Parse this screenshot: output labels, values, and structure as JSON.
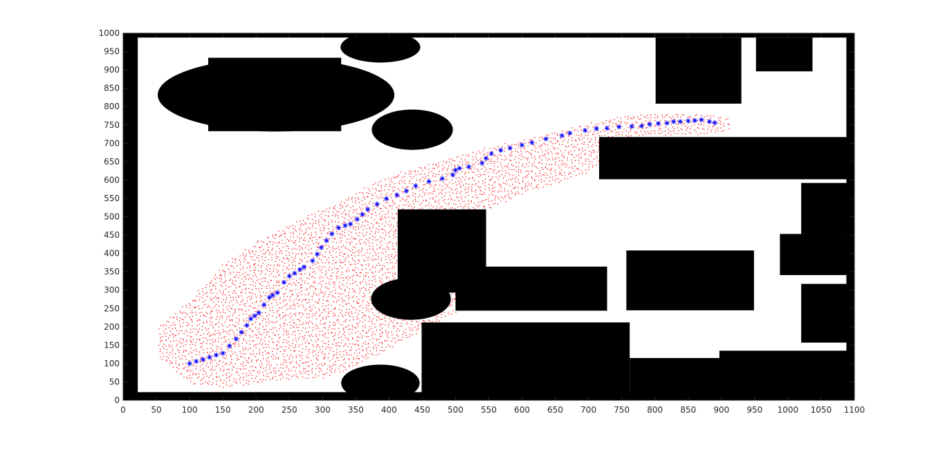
{
  "chart_data": {
    "type": "scatter",
    "title": "",
    "xlabel": "",
    "ylabel": "",
    "xlim": [
      0,
      1100
    ],
    "ylim": [
      0,
      1000
    ],
    "xticks": [
      0,
      50,
      100,
      150,
      200,
      250,
      300,
      350,
      400,
      450,
      500,
      550,
      600,
      650,
      700,
      750,
      800,
      850,
      900,
      950,
      1000,
      1050,
      1100
    ],
    "yticks": [
      0,
      50,
      100,
      150,
      200,
      250,
      300,
      350,
      400,
      450,
      500,
      550,
      600,
      650,
      700,
      750,
      800,
      850,
      900,
      950,
      1000
    ],
    "grid": false,
    "legend": "none",
    "colors": {
      "obstacle": "#000000",
      "free_space": "#ffffff",
      "path": "#0000ff",
      "samples": "#ff0000",
      "axis": "#262626"
    },
    "free_space": {
      "x": [
        22,
        1088
      ],
      "y": [
        22,
        988
      ]
    },
    "obstacles": [
      {
        "shape": "ellipse",
        "cx": 230,
        "cy": 832,
        "rx": 178,
        "ry": 100
      },
      {
        "shape": "rect",
        "x0": 128,
        "x1": 328,
        "y0": 733,
        "y1": 933
      },
      {
        "shape": "ellipse",
        "cx": 387,
        "cy": 962,
        "rx": 60,
        "ry": 42
      },
      {
        "shape": "ellipse",
        "cx": 435,
        "cy": 737,
        "rx": 61,
        "ry": 55
      },
      {
        "shape": "rect",
        "x0": 801,
        "x1": 930,
        "y0": 808,
        "y1": 988
      },
      {
        "shape": "rect",
        "x0": 952,
        "x1": 1037,
        "y0": 896,
        "y1": 988
      },
      {
        "shape": "rect",
        "x0": 716,
        "x1": 1088,
        "y0": 602,
        "y1": 717
      },
      {
        "shape": "rect",
        "x0": 1020,
        "x1": 1088,
        "y0": 453,
        "y1": 592
      },
      {
        "shape": "rect",
        "x0": 988,
        "x1": 1088,
        "y0": 341,
        "y1": 453
      },
      {
        "shape": "rect",
        "x0": 1020,
        "x1": 1088,
        "y0": 157,
        "y1": 317
      },
      {
        "shape": "rect",
        "x0": 413,
        "x1": 546,
        "y0": 293,
        "y1": 520
      },
      {
        "shape": "rect",
        "x0": 500,
        "x1": 728,
        "y0": 244,
        "y1": 364
      },
      {
        "shape": "rect",
        "x0": 757,
        "x1": 949,
        "y0": 245,
        "y1": 408
      },
      {
        "shape": "ellipse",
        "cx": 433,
        "cy": 276,
        "rx": 60,
        "ry": 57
      },
      {
        "shape": "rect",
        "x0": 449,
        "x1": 762,
        "y0": 0,
        "y1": 212
      },
      {
        "shape": "rect",
        "x0": 762,
        "x1": 1100,
        "y0": 0,
        "y1": 115
      },
      {
        "shape": "rect",
        "x0": 897,
        "x1": 1100,
        "y0": 0,
        "y1": 135
      },
      {
        "shape": "ellipse",
        "cx": 387,
        "cy": 47,
        "rx": 59,
        "ry": 50
      }
    ],
    "series": [
      {
        "marker": "*",
        "color": "#0000ff",
        "x": [
          100,
          110,
          120,
          130,
          140,
          150,
          160,
          170,
          178,
          186,
          192,
          198,
          204,
          212,
          220,
          225,
          232,
          242,
          250,
          258,
          266,
          272,
          285,
          292,
          298,
          306,
          314,
          324,
          334,
          342,
          352,
          360,
          368,
          382,
          396,
          412,
          426,
          440,
          460,
          480,
          496,
          500,
          506,
          520,
          540,
          546,
          554,
          568,
          582,
          600,
          615,
          636,
          660,
          672,
          695,
          712,
          728,
          746,
          765,
          780,
          792,
          805,
          818,
          828,
          838,
          850,
          860,
          870,
          882,
          890
        ],
        "y": [
          100,
          106,
          111,
          117,
          123,
          128,
          148,
          167,
          185,
          204,
          222,
          230,
          238,
          260,
          280,
          286,
          293,
          321,
          338,
          346,
          356,
          363,
          380,
          398,
          416,
          435,
          453,
          470,
          476,
          480,
          493,
          506,
          520,
          534,
          549,
          559,
          570,
          584,
          596,
          604,
          614,
          627,
          632,
          636,
          646,
          659,
          672,
          681,
          687,
          695,
          702,
          712,
          721,
          728,
          735,
          740,
          741,
          745,
          746,
          747,
          752,
          754,
          755,
          759,
          759,
          761,
          762,
          764,
          759,
          756
        ]
      },
      {
        "marker": ".",
        "color": "#ff0000",
        "style": "dense sample cloud surrounding the path, widest near the start",
        "envelope": [
          {
            "x": 55,
            "y_low": 115,
            "y_high": 205
          },
          {
            "x": 100,
            "y_low": 45,
            "y_high": 270
          },
          {
            "x": 150,
            "y_low": 35,
            "y_high": 370
          },
          {
            "x": 200,
            "y_low": 45,
            "y_high": 430
          },
          {
            "x": 250,
            "y_low": 55,
            "y_high": 480
          },
          {
            "x": 300,
            "y_low": 60,
            "y_high": 520
          },
          {
            "x": 350,
            "y_low": 90,
            "y_high": 565
          },
          {
            "x": 400,
            "y_low": 140,
            "y_high": 610
          },
          {
            "x": 450,
            "y_low": 190,
            "y_high": 640
          },
          {
            "x": 500,
            "y_low": 240,
            "y_high": 665
          },
          {
            "x": 550,
            "y_low": 520,
            "y_high": 690
          },
          {
            "x": 600,
            "y_low": 560,
            "y_high": 710
          },
          {
            "x": 650,
            "y_low": 590,
            "y_high": 730
          },
          {
            "x": 700,
            "y_low": 620,
            "y_high": 755
          },
          {
            "x": 750,
            "y_low": 718,
            "y_high": 775
          },
          {
            "x": 800,
            "y_low": 720,
            "y_high": 782
          },
          {
            "x": 850,
            "y_low": 722,
            "y_high": 780
          },
          {
            "x": 900,
            "y_low": 728,
            "y_high": 775
          },
          {
            "x": 915,
            "y_low": 738,
            "y_high": 765
          }
        ]
      }
    ]
  }
}
